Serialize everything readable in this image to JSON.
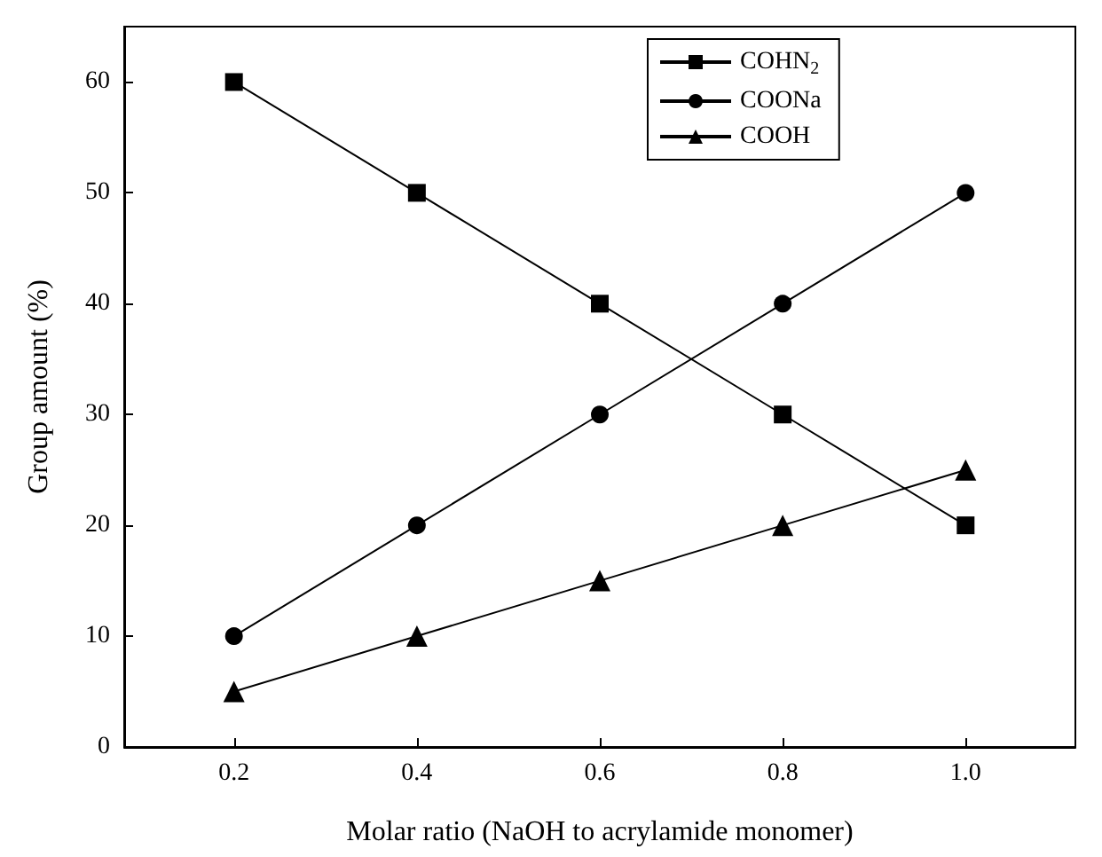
{
  "chart_data": {
    "type": "line",
    "xlabel": "Molar ratio (NaOH to acrylamide monomer)",
    "ylabel": "Group amount (%)",
    "x": [
      0.2,
      0.4,
      0.6,
      0.8,
      1.0
    ],
    "series": [
      {
        "name": "COHN$_{2}$",
        "color": "#000000",
        "marker": "square",
        "values": [
          60,
          50,
          40,
          30,
          20
        ]
      },
      {
        "name": "COONa",
        "color": "#000000",
        "marker": "circle",
        "values": [
          10,
          20,
          30,
          40,
          50
        ]
      },
      {
        "name": "COOH",
        "color": "#000000",
        "marker": "triangle",
        "values": [
          5,
          10,
          15,
          20,
          25
        ]
      }
    ],
    "xlim": [
      0.08,
      1.12
    ],
    "xticks": [
      0.2,
      0.4,
      0.6,
      0.8,
      {
        "value": 1,
        "label": "1.0"
      }
    ],
    "ylim": [
      0,
      65
    ],
    "yticks": [
      0,
      10,
      20,
      30,
      40,
      50,
      60
    ],
    "grid": false,
    "legend": "top right",
    "line_style": "solid"
  }
}
